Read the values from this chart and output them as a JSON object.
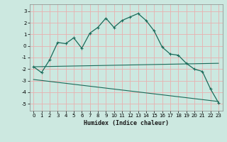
{
  "xlabel": "Humidex (Indice chaleur)",
  "bg_color": "#cce8e0",
  "grid_color_major": "#e8b0b0",
  "grid_color_minor": "#b8d8d0",
  "line_color": "#1a6b5a",
  "xlim": [
    -0.5,
    23.5
  ],
  "ylim": [
    -5.6,
    3.6
  ],
  "yticks": [
    -5,
    -4,
    -3,
    -2,
    -1,
    0,
    1,
    2,
    3
  ],
  "xticks": [
    0,
    1,
    2,
    3,
    4,
    5,
    6,
    7,
    8,
    9,
    10,
    11,
    12,
    13,
    14,
    15,
    16,
    17,
    18,
    19,
    20,
    21,
    22,
    23
  ],
  "curve_x": [
    0,
    1,
    2,
    3,
    4,
    5,
    6,
    7,
    8,
    9,
    10,
    11,
    12,
    13,
    14,
    15,
    16,
    17,
    18,
    19,
    20,
    21,
    22,
    23
  ],
  "curve_y": [
    -1.8,
    -2.3,
    -1.2,
    0.3,
    0.2,
    0.7,
    -0.2,
    1.1,
    1.6,
    2.4,
    1.6,
    2.2,
    2.5,
    2.8,
    2.2,
    1.3,
    -0.1,
    -0.7,
    -0.8,
    -1.5,
    -2.0,
    -2.2,
    -3.7,
    -4.9
  ],
  "line1_x": [
    0,
    23
  ],
  "line1_y": [
    -1.8,
    -1.5
  ],
  "line2_x": [
    0,
    23
  ],
  "line2_y": [
    -2.9,
    -4.8
  ]
}
